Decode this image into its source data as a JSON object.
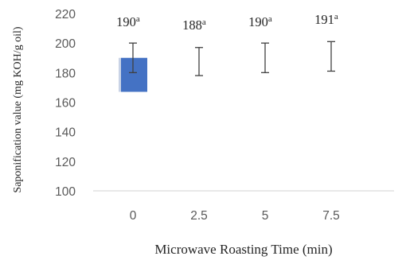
{
  "chart_data": {
    "type": "bar",
    "categories": [
      "0",
      "2.5",
      "5",
      "7.5"
    ],
    "series": [
      {
        "values": [
          190,
          188,
          190,
          191
        ],
        "error_low": [
          180,
          178,
          180,
          181
        ],
        "error_high": [
          200,
          197,
          200,
          201
        ],
        "data_labels": [
          "190",
          "188",
          "190",
          "191"
        ],
        "superscripts": [
          "a",
          "a",
          "a",
          "a"
        ]
      }
    ],
    "bar_base": 167,
    "xlabel": "Microwave Roasting Time (min)",
    "ylabel": "Saponification value (mg KOH/g oil)",
    "ylim": [
      100,
      220
    ],
    "yticks": [
      "100",
      "120",
      "140",
      "160",
      "180",
      "200",
      "220"
    ],
    "grid": false,
    "legend": "none",
    "colors": {
      "bar": "#4472C4",
      "bar_hatch": "#c9d3e6",
      "axis": "#d9d9d9",
      "tick_text": "#595959",
      "label_text": "#262626",
      "error_bar": "#404040"
    }
  }
}
